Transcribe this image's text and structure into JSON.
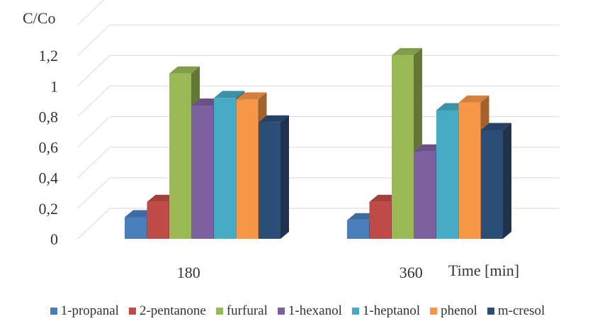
{
  "chart_data": {
    "type": "bar",
    "style": "3d-clustered-column",
    "ylabel": "C/Co",
    "xlabel": "Time [min]",
    "categories": [
      "180",
      "360"
    ],
    "ylim": [
      0,
      1.4
    ],
    "ytick_labels": [
      "0",
      "0,2",
      "0,4",
      "0,6",
      "0,8",
      "1",
      "1,2"
    ],
    "grid": true,
    "legend_position": "bottom",
    "series": [
      {
        "name": "1-propanal",
        "color": "#4a7ebb",
        "values": [
          0.16,
          0.14
        ]
      },
      {
        "name": "2-pentanone",
        "color": "#be4b48",
        "values": [
          0.26,
          0.26
        ]
      },
      {
        "name": "furfural",
        "color": "#98b954",
        "values": [
          1.1,
          1.22
        ]
      },
      {
        "name": "1-hexanol",
        "color": "#7d60a0",
        "values": [
          0.89,
          0.59
        ]
      },
      {
        "name": "1-heptanol",
        "color": "#46aac5",
        "values": [
          0.94,
          0.86
        ]
      },
      {
        "name": "phenol",
        "color": "#f79646",
        "values": [
          0.93,
          0.91
        ]
      },
      {
        "name": "m-cresol",
        "color": "#2c4d75",
        "values": [
          0.78,
          0.73
        ]
      }
    ]
  }
}
